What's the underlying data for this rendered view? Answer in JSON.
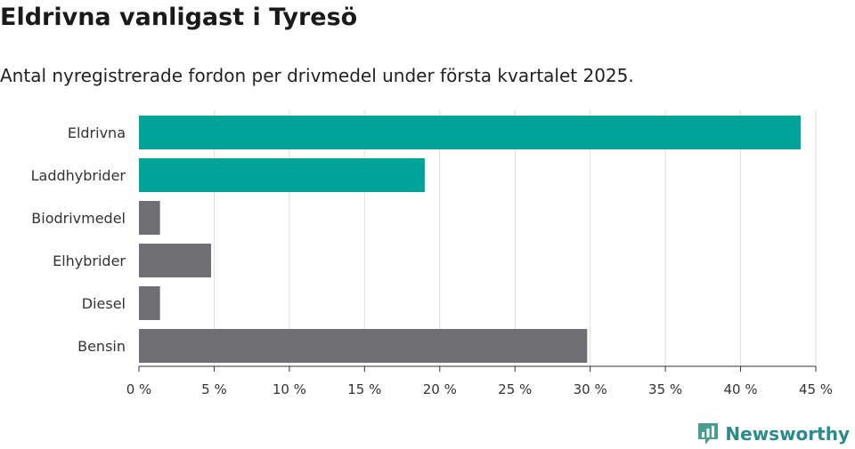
{
  "header": {
    "title": "Eldrivna vanligast i Tyresö",
    "subtitle": "Antal nyregistrerade fordon per drivmedel under första kvartalet 2025."
  },
  "brand": {
    "name": "Newsworthy",
    "icon": "newsworthy-logo-icon",
    "color": "#4a9d8f"
  },
  "colors": {
    "highlight": "#00a398",
    "default": "#6e6e73",
    "grid": "#dddddd",
    "axis": "#333333"
  },
  "chart_data": {
    "type": "bar",
    "orientation": "horizontal",
    "categories": [
      "Eldrivna",
      "Laddhybrider",
      "Biodrivmedel",
      "Elhybrider",
      "Diesel",
      "Bensin"
    ],
    "values": [
      44,
      19,
      1.4,
      4.8,
      1.4,
      29.8
    ],
    "highlighted": [
      true,
      true,
      false,
      false,
      false,
      false
    ],
    "unit": "%",
    "xlim": [
      0,
      45
    ],
    "ticks": [
      0,
      5,
      10,
      15,
      20,
      25,
      30,
      35,
      40,
      45
    ],
    "tick_labels": [
      "0 %",
      "5 %",
      "10 %",
      "15 %",
      "20 %",
      "25 %",
      "30 %",
      "35 %",
      "40 %",
      "45 %"
    ],
    "grid": true,
    "legend": "none",
    "title": "Eldrivna vanligast i Tyresö",
    "subtitle": "Antal nyregistrerade fordon per drivmedel under första kvartalet 2025."
  }
}
